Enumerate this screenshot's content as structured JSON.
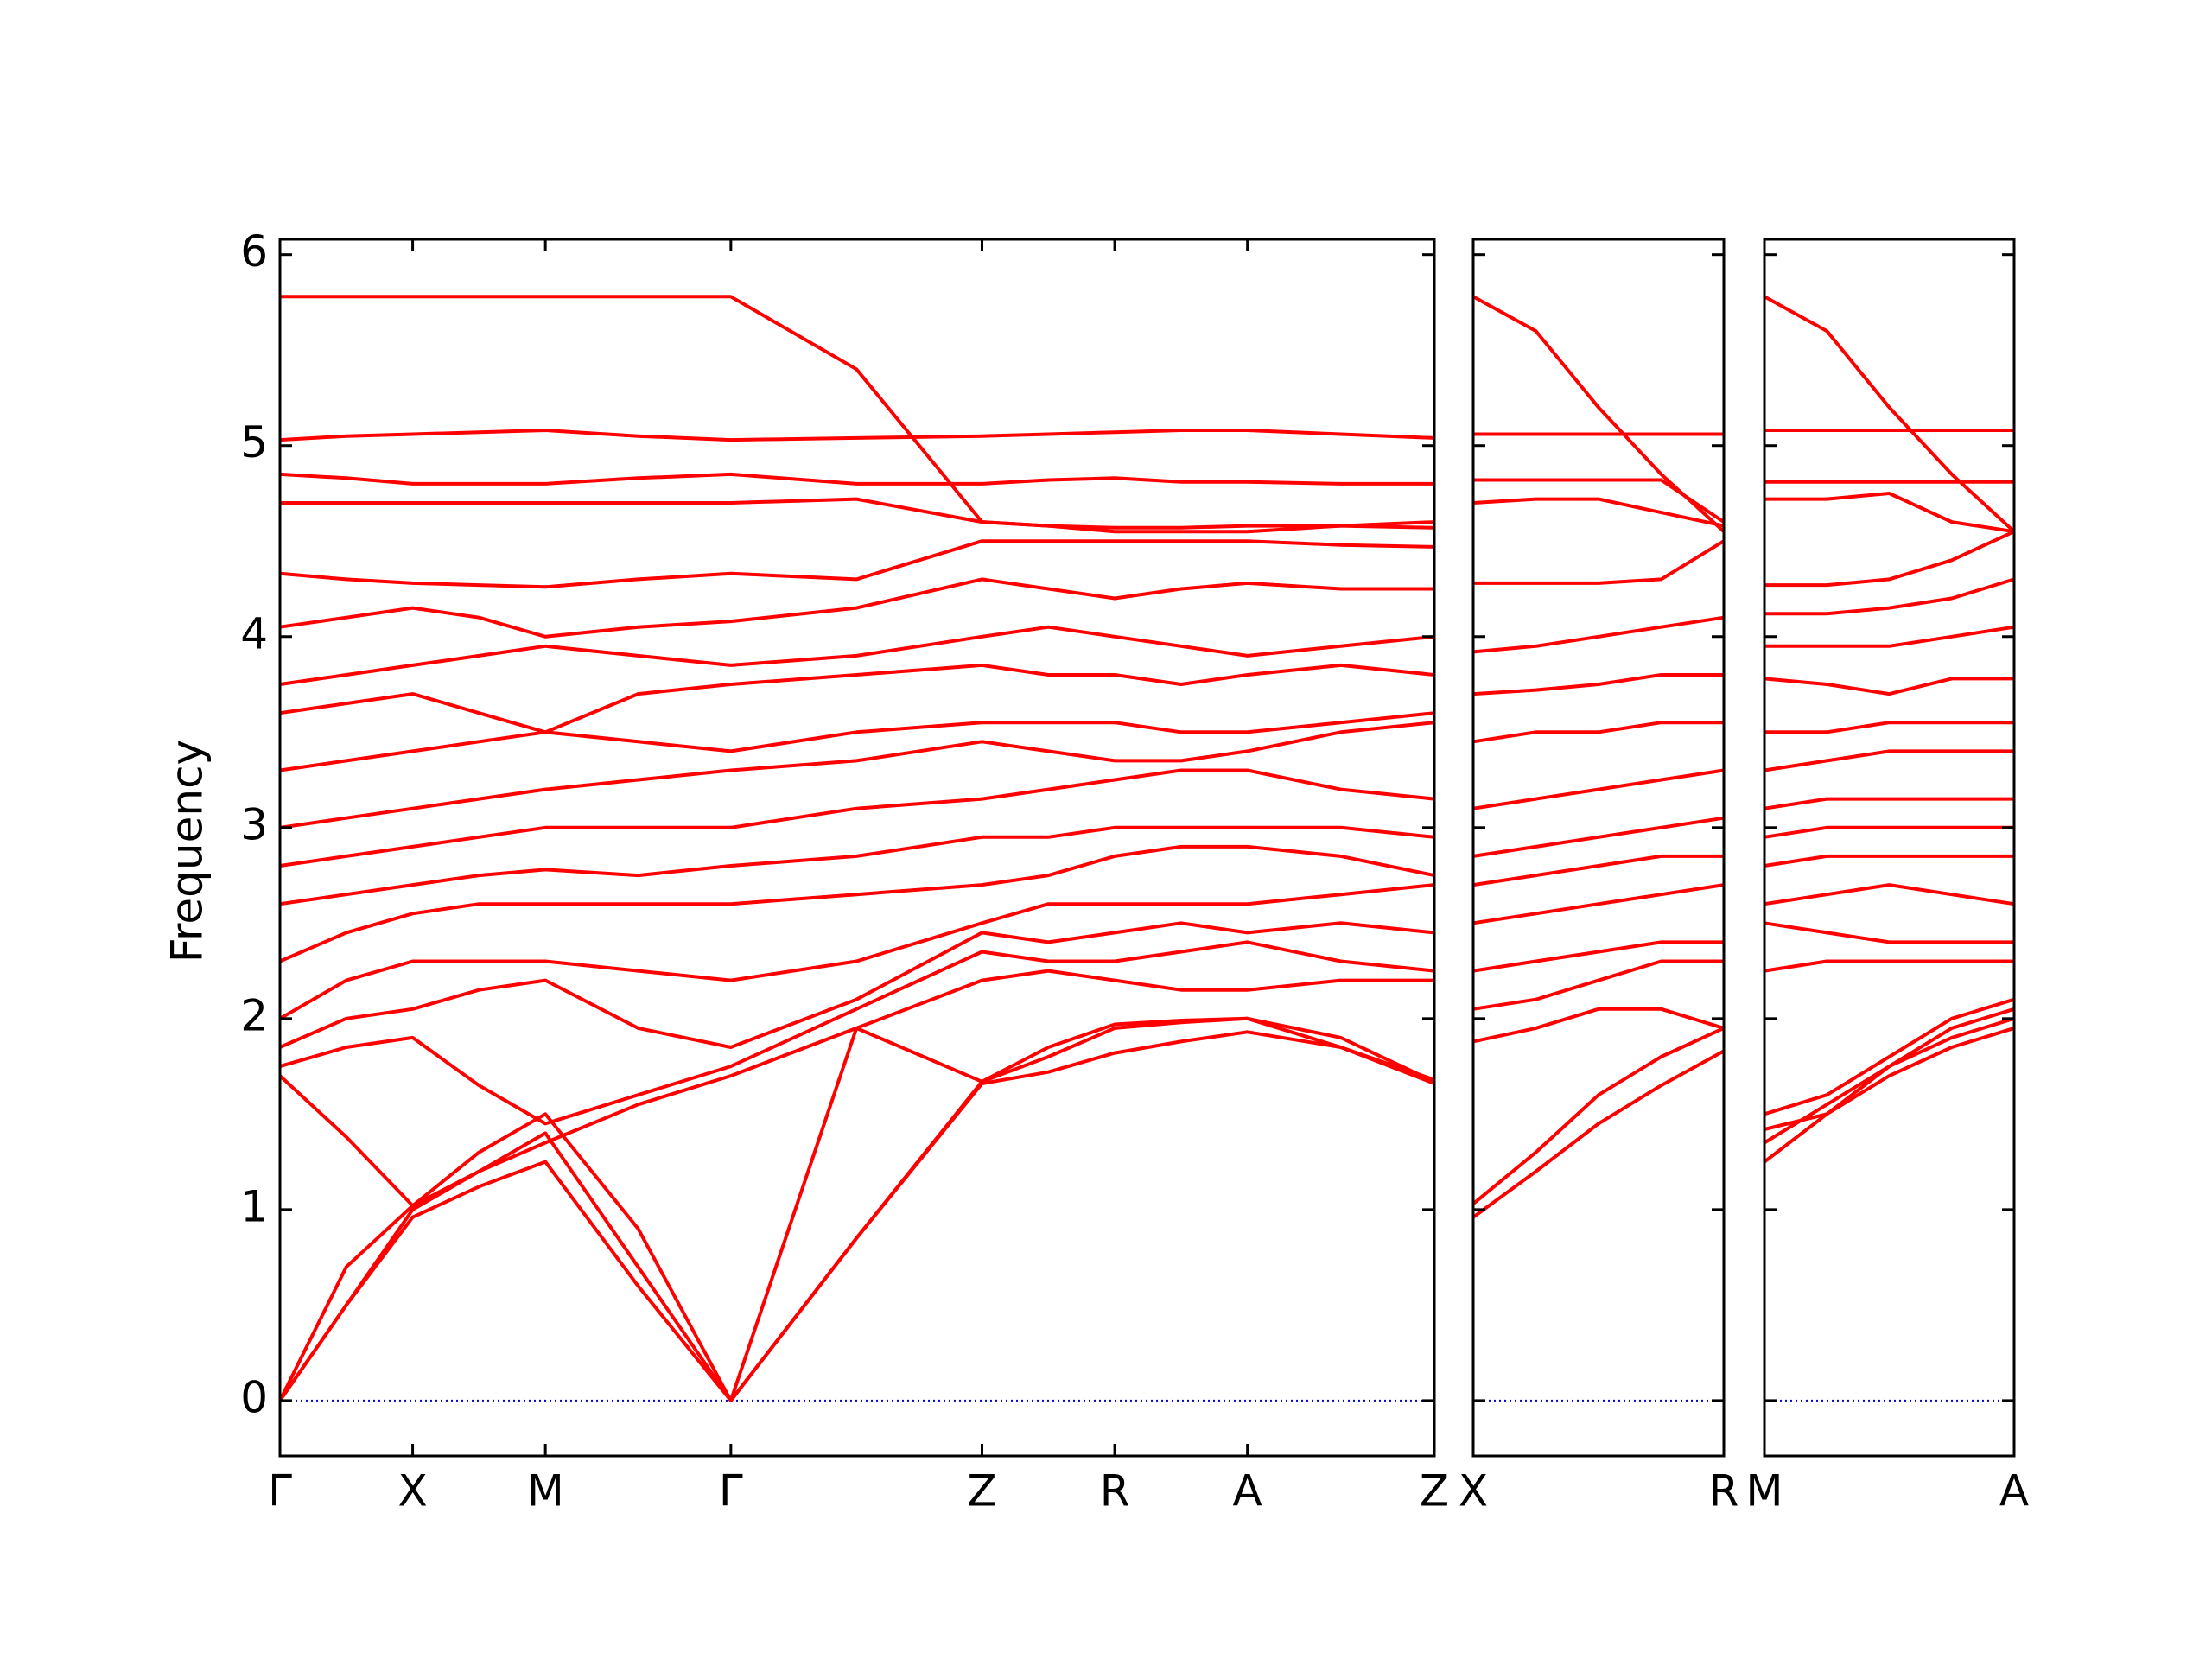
{
  "chart_data": [
    {
      "type": "line",
      "ylabel": "Frequency",
      "color": "#ff0000",
      "ylim": [
        -0.29,
        6.08
      ],
      "yticks": [
        0,
        1,
        2,
        3,
        4,
        5,
        6
      ],
      "xlim": [
        0,
        8.09
      ],
      "xticks": [
        {
          "value": 0,
          "label": "Γ"
        },
        {
          "value": 0.93,
          "label": "X"
        },
        {
          "value": 1.86,
          "label": "M"
        },
        {
          "value": 3.16,
          "label": "Γ"
        },
        {
          "value": 4.92,
          "label": "Z"
        },
        {
          "value": 5.85,
          "label": "R"
        },
        {
          "value": 6.78,
          "label": "A"
        },
        {
          "value": 8.09,
          "label": "Z"
        }
      ],
      "zero_line": 0,
      "zero_line_color": "#0000cc",
      "x": [
        0,
        0.465,
        0.93,
        1.395,
        1.86,
        2.51,
        3.16,
        4.04,
        4.92,
        5.385,
        5.85,
        6.315,
        6.78,
        7.435,
        8.09
      ],
      "series": [
        {
          "values": [
            0,
            0.5,
            0.96,
            1.12,
            1.25,
            0.6,
            0,
            0.85,
            1.66,
            1.72,
            1.82,
            1.88,
            1.93,
            1.85,
            1.66
          ]
        },
        {
          "values": [
            0,
            0.5,
            1.0,
            1.2,
            1.4,
            0.7,
            0,
            0.85,
            1.67,
            1.8,
            1.95,
            1.98,
            2.0,
            1.9,
            1.67
          ]
        },
        {
          "values": [
            0,
            0.7,
            1.02,
            1.3,
            1.5,
            0.9,
            0,
            1.95,
            1.67,
            1.85,
            1.97,
            1.99,
            2.0,
            1.85,
            1.68
          ]
        },
        {
          "values": [
            1.7,
            1.38,
            1.02,
            1.2,
            1.35,
            1.55,
            1.7,
            1.95,
            2.2,
            2.25,
            2.2,
            2.15,
            2.15,
            2.2,
            2.2
          ]
        },
        {
          "values": [
            1.75,
            1.85,
            1.9,
            1.65,
            1.45,
            1.6,
            1.75,
            2.05,
            2.35,
            2.3,
            2.3,
            2.35,
            2.4,
            2.3,
            2.25
          ]
        },
        {
          "values": [
            1.85,
            2.0,
            2.05,
            2.15,
            2.2,
            1.95,
            1.85,
            2.1,
            2.45,
            2.4,
            2.45,
            2.5,
            2.45,
            2.5,
            2.45
          ]
        },
        {
          "values": [
            2.0,
            2.2,
            2.3,
            2.3,
            2.3,
            2.25,
            2.2,
            2.3,
            2.5,
            2.6,
            2.6,
            2.6,
            2.6,
            2.65,
            2.7
          ]
        },
        {
          "values": [
            2.3,
            2.45,
            2.55,
            2.6,
            2.6,
            2.6,
            2.6,
            2.65,
            2.7,
            2.75,
            2.85,
            2.9,
            2.9,
            2.85,
            2.75
          ]
        },
        {
          "values": [
            2.6,
            2.65,
            2.7,
            2.75,
            2.78,
            2.75,
            2.8,
            2.85,
            2.95,
            2.95,
            3.0,
            3.0,
            3.0,
            3.0,
            2.95
          ]
        },
        {
          "values": [
            2.8,
            2.85,
            2.9,
            2.95,
            3.0,
            3.0,
            3.0,
            3.1,
            3.15,
            3.2,
            3.25,
            3.3,
            3.3,
            3.2,
            3.15
          ]
        },
        {
          "values": [
            3.0,
            3.05,
            3.1,
            3.15,
            3.2,
            3.25,
            3.3,
            3.35,
            3.45,
            3.4,
            3.35,
            3.35,
            3.4,
            3.5,
            3.55
          ]
        },
        {
          "values": [
            3.3,
            3.35,
            3.4,
            3.45,
            3.5,
            3.45,
            3.4,
            3.5,
            3.55,
            3.55,
            3.55,
            3.5,
            3.5,
            3.55,
            3.6
          ]
        },
        {
          "values": [
            3.6,
            3.65,
            3.7,
            3.6,
            3.5,
            3.7,
            3.75,
            3.8,
            3.85,
            3.8,
            3.8,
            3.75,
            3.8,
            3.85,
            3.8
          ]
        },
        {
          "values": [
            3.75,
            3.8,
            3.85,
            3.9,
            3.95,
            3.9,
            3.85,
            3.9,
            4.0,
            4.05,
            4.0,
            3.95,
            3.9,
            3.95,
            4.0
          ]
        },
        {
          "values": [
            4.05,
            4.1,
            4.15,
            4.1,
            4.0,
            4.05,
            4.08,
            4.15,
            4.3,
            4.25,
            4.2,
            4.25,
            4.28,
            4.25,
            4.25
          ]
        },
        {
          "values": [
            4.33,
            4.3,
            4.28,
            4.27,
            4.26,
            4.3,
            4.33,
            4.3,
            4.5,
            4.5,
            4.5,
            4.5,
            4.5,
            4.48,
            4.47
          ]
        },
        {
          "values": [
            4.7,
            4.7,
            4.7,
            4.7,
            4.7,
            4.7,
            4.7,
            4.72,
            4.6,
            4.58,
            4.55,
            4.55,
            4.55,
            4.58,
            4.6
          ]
        },
        {
          "values": [
            4.85,
            4.83,
            4.8,
            4.8,
            4.8,
            4.83,
            4.85,
            4.8,
            4.8,
            4.82,
            4.83,
            4.81,
            4.81,
            4.8,
            4.8
          ]
        },
        {
          "values": [
            5.03,
            5.05,
            5.06,
            5.07,
            5.08,
            5.05,
            5.03,
            5.04,
            5.05,
            5.06,
            5.07,
            5.08,
            5.08,
            5.06,
            5.04
          ]
        },
        {
          "values": [
            5.78,
            5.78,
            5.78,
            5.78,
            5.78,
            5.78,
            5.78,
            5.4,
            4.6,
            4.58,
            4.57,
            4.57,
            4.58,
            4.58,
            4.57
          ]
        }
      ]
    },
    {
      "type": "line",
      "color": "#ff0000",
      "ylim": [
        -0.29,
        6.08
      ],
      "yticks": [
        0,
        1,
        2,
        3,
        4,
        5,
        6
      ],
      "xlim": [
        0,
        1.76
      ],
      "xticks": [
        {
          "value": 0,
          "label": "X"
        },
        {
          "value": 1.76,
          "label": "R"
        }
      ],
      "zero_line": 0,
      "zero_line_color": "#0000cc",
      "x": [
        0,
        0.44,
        0.88,
        1.32,
        1.76
      ],
      "series": [
        {
          "values": [
            0.96,
            1.2,
            1.45,
            1.65,
            1.83
          ]
        },
        {
          "values": [
            1.03,
            1.3,
            1.6,
            1.8,
            1.95
          ]
        },
        {
          "values": [
            1.88,
            1.95,
            2.05,
            2.05,
            1.95
          ]
        },
        {
          "values": [
            2.05,
            2.1,
            2.2,
            2.3,
            2.3
          ]
        },
        {
          "values": [
            2.25,
            2.3,
            2.35,
            2.4,
            2.4
          ]
        },
        {
          "values": [
            2.5,
            2.55,
            2.6,
            2.65,
            2.7
          ]
        },
        {
          "values": [
            2.7,
            2.75,
            2.8,
            2.85,
            2.85
          ]
        },
        {
          "values": [
            2.85,
            2.9,
            2.95,
            3.0,
            3.05
          ]
        },
        {
          "values": [
            3.1,
            3.15,
            3.2,
            3.25,
            3.3
          ]
        },
        {
          "values": [
            3.45,
            3.5,
            3.5,
            3.55,
            3.55
          ]
        },
        {
          "values": [
            3.7,
            3.72,
            3.75,
            3.8,
            3.8
          ]
        },
        {
          "values": [
            3.92,
            3.95,
            4.0,
            4.05,
            4.1
          ]
        },
        {
          "values": [
            4.28,
            4.28,
            4.28,
            4.3,
            4.5
          ]
        },
        {
          "values": [
            4.7,
            4.72,
            4.72,
            4.65,
            4.58
          ]
        },
        {
          "values": [
            4.82,
            4.82,
            4.82,
            4.82,
            4.6
          ]
        },
        {
          "values": [
            5.06,
            5.06,
            5.06,
            5.06,
            5.06
          ]
        },
        {
          "values": [
            5.78,
            5.6,
            5.2,
            4.85,
            4.55
          ]
        }
      ]
    },
    {
      "type": "line",
      "color": "#ff0000",
      "ylim": [
        -0.29,
        6.08
      ],
      "yticks": [
        0,
        1,
        2,
        3,
        4,
        5,
        6
      ],
      "xlim": [
        0,
        1.75
      ],
      "xticks": [
        {
          "value": 0,
          "label": "M"
        },
        {
          "value": 1.75,
          "label": "A"
        }
      ],
      "zero_line": 0,
      "zero_line_color": "#0000cc",
      "x": [
        0,
        0.4375,
        0.875,
        1.3125,
        1.75
      ],
      "series": [
        {
          "values": [
            1.25,
            1.5,
            1.7,
            1.85,
            1.95
          ]
        },
        {
          "values": [
            1.35,
            1.55,
            1.75,
            1.9,
            2.0
          ]
        },
        {
          "values": [
            1.42,
            1.5,
            1.75,
            1.95,
            2.05
          ]
        },
        {
          "values": [
            1.5,
            1.6,
            1.8,
            2.0,
            2.1
          ]
        },
        {
          "values": [
            2.25,
            2.3,
            2.3,
            2.3,
            2.3
          ]
        },
        {
          "values": [
            2.5,
            2.45,
            2.4,
            2.4,
            2.4
          ]
        },
        {
          "values": [
            2.6,
            2.65,
            2.7,
            2.65,
            2.6
          ]
        },
        {
          "values": [
            2.8,
            2.85,
            2.85,
            2.85,
            2.85
          ]
        },
        {
          "values": [
            2.95,
            3.0,
            3.0,
            3.0,
            3.0
          ]
        },
        {
          "values": [
            3.1,
            3.15,
            3.15,
            3.15,
            3.15
          ]
        },
        {
          "values": [
            3.3,
            3.35,
            3.4,
            3.4,
            3.4
          ]
        },
        {
          "values": [
            3.5,
            3.5,
            3.55,
            3.55,
            3.55
          ]
        },
        {
          "values": [
            3.78,
            3.75,
            3.7,
            3.78,
            3.78
          ]
        },
        {
          "values": [
            3.95,
            3.95,
            3.95,
            4.0,
            4.05
          ]
        },
        {
          "values": [
            4.12,
            4.12,
            4.15,
            4.2,
            4.3
          ]
        },
        {
          "values": [
            4.27,
            4.27,
            4.3,
            4.4,
            4.55
          ]
        },
        {
          "values": [
            4.72,
            4.72,
            4.75,
            4.6,
            4.55
          ]
        },
        {
          "values": [
            4.81,
            4.81,
            4.81,
            4.81,
            4.81
          ]
        },
        {
          "values": [
            5.08,
            5.08,
            5.08,
            5.08,
            5.08
          ]
        },
        {
          "values": [
            5.78,
            5.6,
            5.2,
            4.85,
            4.55
          ]
        }
      ]
    }
  ]
}
